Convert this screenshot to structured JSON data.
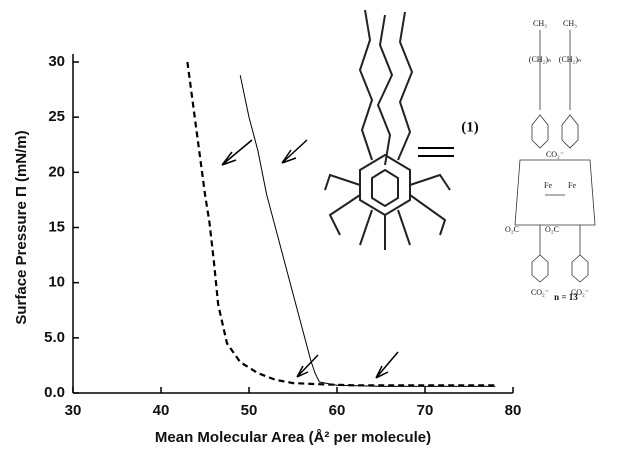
{
  "chart_data": {
    "type": "line",
    "x_label": "Mean Molecular Area (Å² per molecule)",
    "y_label": "Surface Pressure Π (mN/m)",
    "xlim": [
      30,
      80
    ],
    "xticks": [
      30,
      40,
      50,
      60,
      70,
      80
    ],
    "ylim": [
      0,
      30
    ],
    "yticks": [
      {
        "value": 0,
        "label": "0.0"
      },
      {
        "value": 5,
        "label": "5.0"
      },
      10,
      15,
      20,
      25,
      30
    ],
    "grid": false,
    "series": [
      {
        "color": "#000000",
        "dash": true,
        "x": [
          43,
          44,
          45,
          45.5,
          46,
          46.5,
          47.5,
          49,
          51,
          53,
          55,
          58,
          62,
          70,
          78
        ],
        "values": [
          30,
          24,
          18,
          15.5,
          12,
          8,
          4.5,
          2.8,
          1.8,
          1.2,
          0.9,
          0.8,
          0.7,
          0.7,
          0.7
        ]
      },
      {
        "color": "#000000",
        "dash": false,
        "x": [
          49,
          50,
          51,
          52,
          53,
          54,
          55,
          56,
          57,
          57.5,
          58,
          60,
          65,
          70,
          78
        ],
        "values": [
          28.8,
          25,
          22,
          18,
          15,
          12,
          9,
          6,
          3,
          1.8,
          1,
          0.7,
          0.6,
          0.6,
          0.6
        ]
      }
    ],
    "annotations": [
      "(1)",
      "n = 13"
    ],
    "structure_labels": [
      "CH₃",
      "CH₃",
      "(CH₂)ₙ",
      "(CH₂)ₙ",
      "CO₂⁻",
      "O₂C",
      "O₂C",
      "CO₂⁻",
      "CO₂⁻",
      "Fe",
      "Fe"
    ]
  }
}
